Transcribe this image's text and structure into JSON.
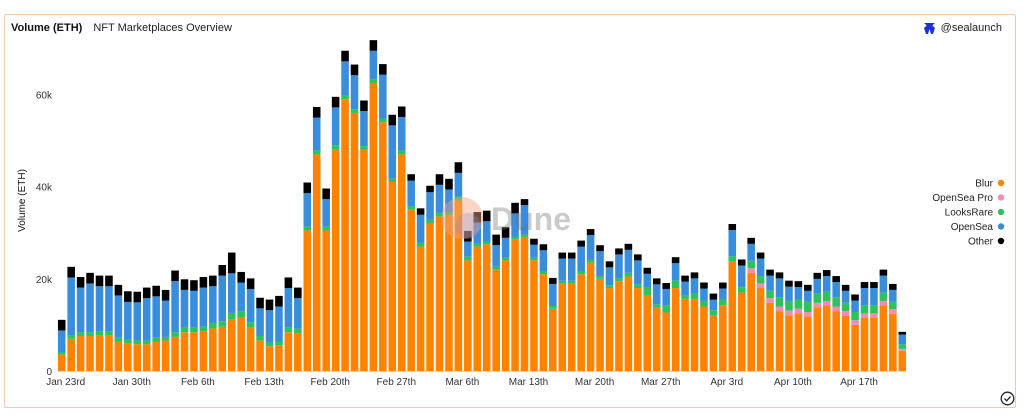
{
  "header": {
    "title": "Volume (ETH)",
    "subtitle": "NFT Marketplaces Overview"
  },
  "brand": {
    "handle": "@sealaunch",
    "icon": "sealaunch-logo-icon"
  },
  "watermark": {
    "text": "Dune"
  },
  "colors": {
    "Blur": "#ff8200",
    "OpenSea Pro": "#f48bb5",
    "LooksRare": "#2fc25b",
    "OpenSea": "#3a8ddb",
    "Other": "#000000"
  },
  "chart_data": {
    "type": "bar",
    "stacked": true,
    "ylabel": "Volume (ETH)",
    "xlabel": "",
    "ylim": [
      0,
      74000
    ],
    "yticks": [
      "0",
      "20k",
      "40k",
      "60k"
    ],
    "ytick_values": [
      0,
      20000,
      40000,
      60000
    ],
    "xticks": [
      "Jan 23rd",
      "Jan 30th",
      "Feb 6th",
      "Feb 13th",
      "Feb 20th",
      "Feb 27th",
      "Mar 6th",
      "Mar 13th",
      "Mar 20th",
      "Mar 27th",
      "Apr 3rd",
      "Apr 10th",
      "Apr 17th"
    ],
    "xtick_index": [
      0,
      7,
      14,
      21,
      28,
      35,
      42,
      49,
      56,
      63,
      70,
      77,
      84
    ],
    "legend_position": "right",
    "grid": false,
    "categories_count": 90,
    "series": [
      {
        "name": "Blur",
        "values": [
          3600,
          7000,
          7600,
          7600,
          7800,
          7800,
          6400,
          6000,
          5800,
          5800,
          6400,
          6600,
          7400,
          8400,
          8400,
          8600,
          9200,
          9600,
          11200,
          11600,
          9400,
          6600,
          5400,
          5600,
          8400,
          8200,
          30500,
          47000,
          30500,
          48000,
          59000,
          56000,
          48000,
          62500,
          54000,
          41000,
          47000,
          35000,
          27000,
          32000,
          33500,
          33700,
          37000,
          24000,
          27000,
          27500,
          22000,
          24000,
          28500,
          29000,
          24000,
          21000,
          13500,
          19000,
          19000,
          21000,
          23500,
          20000,
          18000,
          19500,
          20500,
          18000,
          16500,
          13700,
          12700,
          18000,
          15600,
          15600,
          14000,
          12000,
          14300,
          23700,
          17000,
          21300,
          18000,
          14800,
          13000,
          12100,
          12500,
          11800,
          13800,
          14200,
          13000,
          12000,
          10000,
          11500,
          11500,
          14200,
          12400,
          4400
        ]
      },
      {
        "name": "OpenSea Pro",
        "values": [
          0,
          0,
          0,
          0,
          0,
          0,
          0,
          0,
          0,
          0,
          0,
          0,
          0,
          0,
          0,
          0,
          0,
          0,
          0,
          0,
          0,
          0,
          0,
          0,
          0,
          0,
          0,
          0,
          0,
          0,
          0,
          0,
          0,
          0,
          0,
          0,
          0,
          0,
          0,
          0,
          0,
          0,
          0,
          0,
          0,
          0,
          0,
          0,
          0,
          0,
          0,
          0,
          0,
          0,
          0,
          0,
          0,
          0,
          0,
          0,
          0,
          0,
          0,
          0,
          0,
          0,
          0,
          0,
          0,
          0,
          0,
          0,
          0,
          1000,
          1000,
          1000,
          1000,
          1000,
          1000,
          1000,
          1000,
          1000,
          1000,
          1000,
          1000,
          1000,
          1000,
          1000,
          1000,
          400
        ]
      },
      {
        "name": "LooksRare",
        "values": [
          400,
          800,
          800,
          800,
          800,
          800,
          800,
          800,
          800,
          800,
          800,
          800,
          1000,
          1000,
          1000,
          1000,
          1200,
          1200,
          1400,
          1400,
          1200,
          1000,
          800,
          800,
          1000,
          1000,
          800,
          800,
          800,
          1000,
          800,
          800,
          800,
          800,
          800,
          800,
          800,
          800,
          800,
          800,
          800,
          800,
          800,
          800,
          600,
          600,
          600,
          600,
          600,
          600,
          600,
          600,
          600,
          600,
          600,
          600,
          600,
          600,
          600,
          600,
          800,
          800,
          1600,
          800,
          1600,
          1600,
          800,
          1200,
          1200,
          1200,
          1200,
          1200,
          1200,
          1600,
          1600,
          1600,
          2000,
          2000,
          2000,
          2200,
          2000,
          2000,
          2000,
          1800,
          1800,
          1800,
          1800,
          1800,
          1600,
          1000
        ]
      },
      {
        "name": "OpenSea",
        "values": [
          4800,
          12500,
          9700,
          10600,
          9800,
          9800,
          9200,
          8200,
          8300,
          9200,
          9000,
          7900,
          11100,
          8200,
          8000,
          8500,
          8000,
          9900,
          8600,
          6200,
          7200,
          6000,
          7000,
          7600,
          8600,
          6600,
          7300,
          7200,
          6000,
          8200,
          7400,
          7400,
          7600,
          6200,
          9500,
          11500,
          7300,
          5500,
          6100,
          6000,
          6100,
          4900,
          5200,
          3300,
          4600,
          4400,
          4700,
          4300,
          5100,
          6400,
          2800,
          4600,
          4800,
          4800,
          4800,
          5400,
          5400,
          5400,
          3900,
          5200,
          5000,
          5200,
          3000,
          4300,
          3500,
          3800,
          3000,
          3300,
          2700,
          2300,
          2400,
          5700,
          4700,
          3700,
          3800,
          3300,
          4100,
          3200,
          2700,
          2400,
          3200,
          3400,
          3300,
          2600,
          2500,
          3700,
          3700,
          3700,
          2600,
          2100
        ]
      },
      {
        "name": "Other",
        "values": [
          2300,
          2300,
          2300,
          2300,
          2300,
          2300,
          2300,
          2300,
          2300,
          2300,
          2300,
          2300,
          2300,
          2300,
          2300,
          2300,
          2300,
          2300,
          4500,
          2300,
          2300,
          2300,
          2300,
          2300,
          2300,
          2300,
          2300,
          2300,
          2300,
          2300,
          2300,
          2300,
          2300,
          2300,
          2300,
          2300,
          2300,
          1400,
          1400,
          1400,
          2300,
          2300,
          2300,
          2300,
          2300,
          2300,
          2300,
          2300,
          2300,
          1300,
          1300,
          1300,
          1300,
          1300,
          1300,
          1300,
          1300,
          1300,
          1300,
          1300,
          1300,
          1300,
          1300,
          1300,
          1300,
          1300,
          1300,
          1300,
          1300,
          1300,
          1300,
          1300,
          1300,
          1300,
          1300,
          1300,
          1300,
          1300,
          1300,
          1300,
          1300,
          1300,
          1300,
          1300,
          1300,
          1300,
          1300,
          1300,
          1300,
          600
        ]
      }
    ]
  }
}
